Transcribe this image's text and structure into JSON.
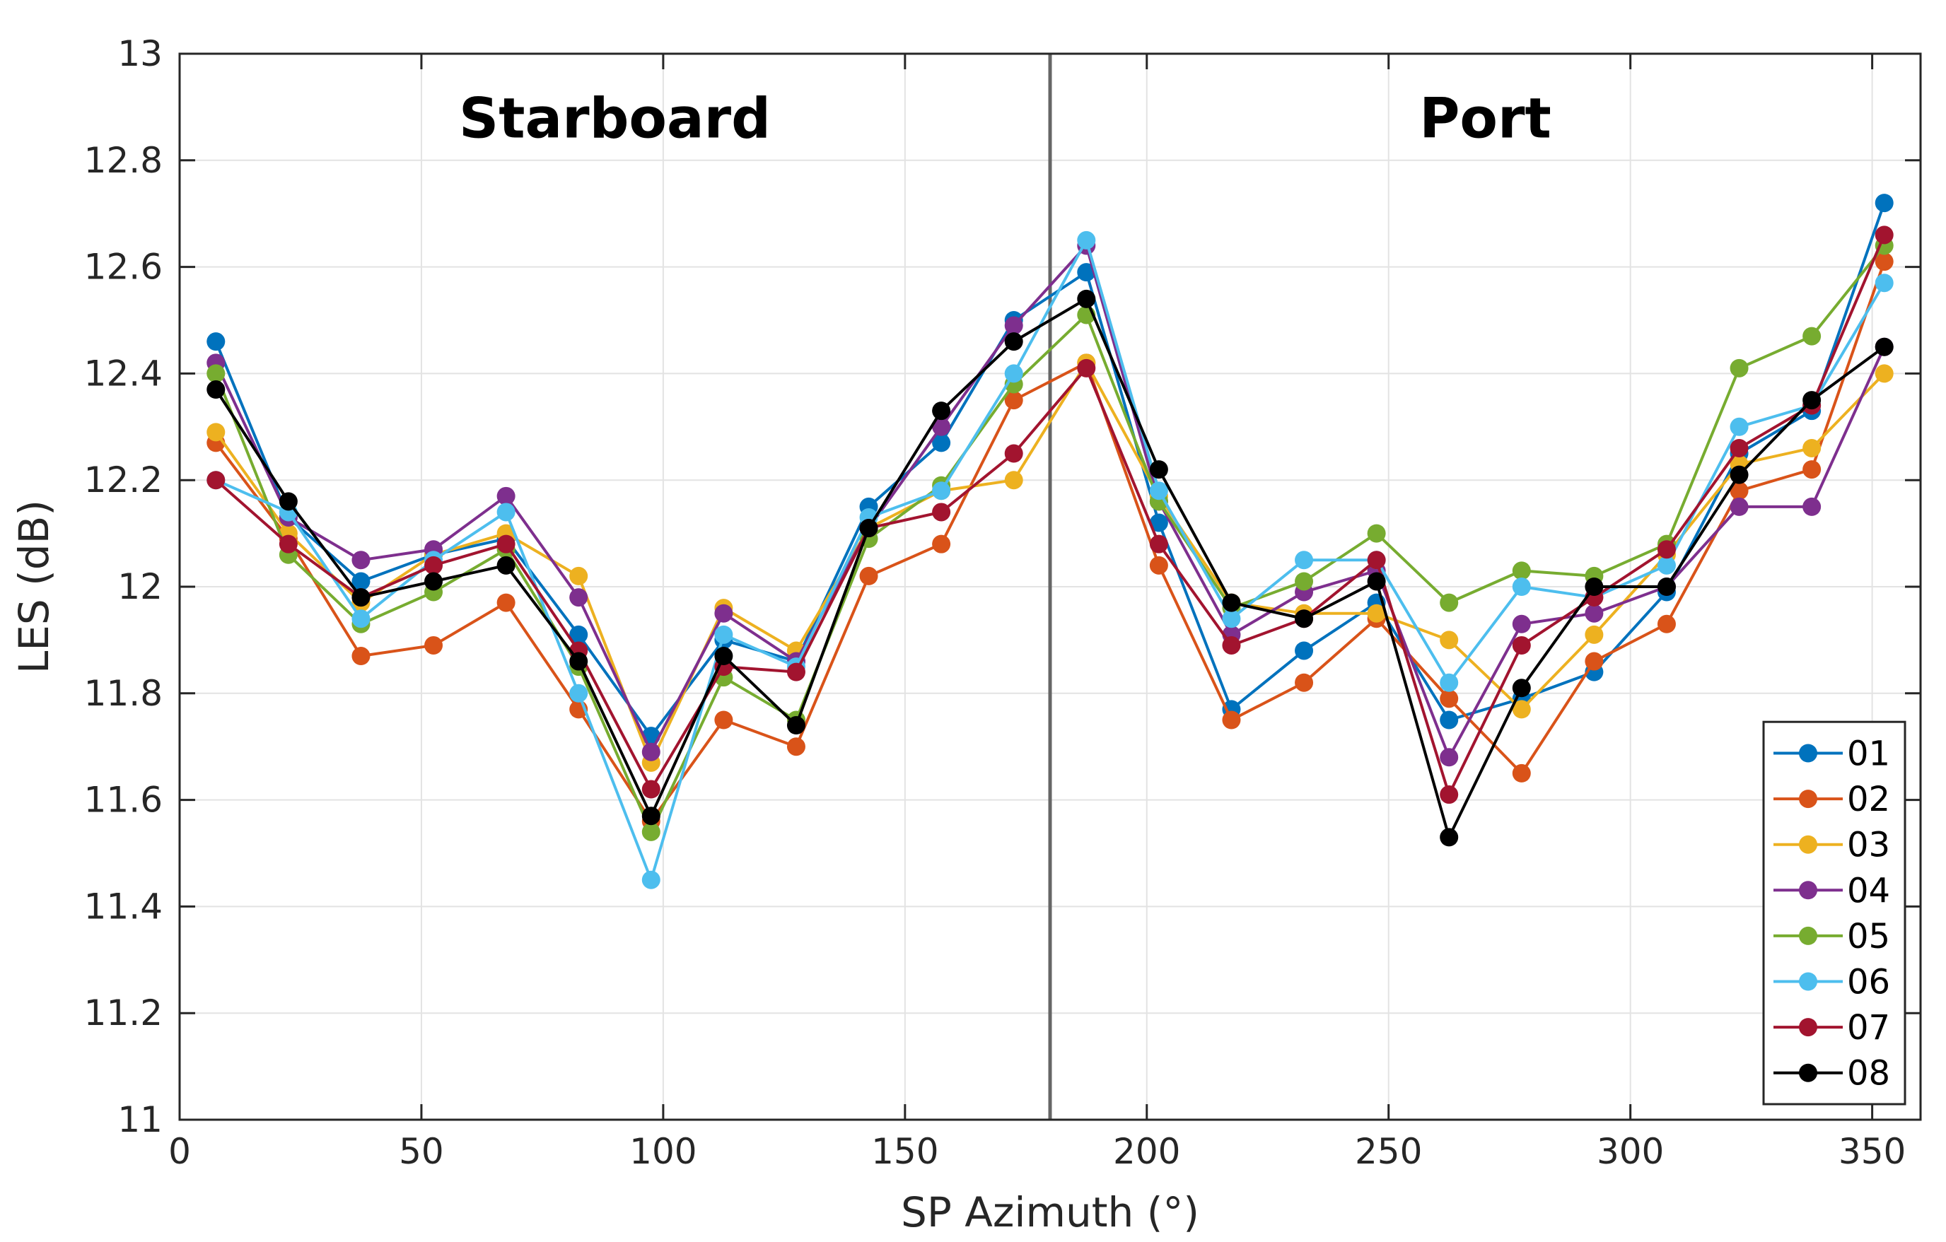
{
  "chart_data": {
    "type": "line",
    "xlabel": "SP Azimuth (°)",
    "ylabel": "LES (dB)",
    "xlim": [
      0,
      360
    ],
    "ylim": [
      11,
      13
    ],
    "x_ticks": [
      0,
      50,
      100,
      150,
      200,
      250,
      300,
      350
    ],
    "y_ticks": [
      11,
      11.2,
      11.4,
      11.6,
      11.8,
      12,
      12.2,
      12.4,
      12.6,
      12.8,
      13
    ],
    "y_tick_labels": [
      "11",
      "11.2",
      "11.4",
      "11.6",
      "11.8",
      "12",
      "12.2",
      "12.4",
      "12.6",
      "12.8",
      "13"
    ],
    "grid": true,
    "divider_x": 180,
    "panel_titles": [
      {
        "text": "Starboard",
        "x": 90,
        "y": 12.88
      },
      {
        "text": "Port",
        "x": 270,
        "y": 12.88
      }
    ],
    "legend_position": "bottom-right",
    "x": [
      7.5,
      22.5,
      37.5,
      52.5,
      67.5,
      82.5,
      97.5,
      112.5,
      127.5,
      142.5,
      157.5,
      172.5,
      187.5,
      202.5,
      217.5,
      232.5,
      247.5,
      262.5,
      277.5,
      292.5,
      307.5,
      322.5,
      337.5,
      352.5
    ],
    "series": [
      {
        "name": "01",
        "color": "#0072BD",
        "values": [
          12.46,
          12.13,
          12.01,
          12.06,
          12.09,
          11.91,
          11.72,
          11.9,
          11.86,
          12.15,
          12.27,
          12.5,
          12.59,
          12.12,
          11.77,
          11.88,
          11.97,
          11.75,
          11.79,
          11.84,
          11.99,
          12.25,
          12.33,
          12.72
        ]
      },
      {
        "name": "02",
        "color": "#D95319",
        "values": [
          12.27,
          12.09,
          11.87,
          11.89,
          11.97,
          11.77,
          11.56,
          11.75,
          11.7,
          12.02,
          12.08,
          12.35,
          12.42,
          12.04,
          11.75,
          11.82,
          11.94,
          11.79,
          11.65,
          11.86,
          11.93,
          12.18,
          12.22,
          12.61
        ]
      },
      {
        "name": "03",
        "color": "#EDB120",
        "values": [
          12.29,
          12.1,
          11.97,
          12.06,
          12.1,
          12.02,
          11.67,
          11.96,
          11.88,
          12.11,
          12.18,
          12.2,
          12.42,
          12.17,
          11.97,
          11.95,
          11.95,
          11.9,
          11.77,
          11.91,
          12.06,
          12.23,
          12.26,
          12.4
        ]
      },
      {
        "name": "04",
        "color": "#7E2F8E",
        "values": [
          12.42,
          12.13,
          12.05,
          12.07,
          12.17,
          11.98,
          11.69,
          11.95,
          11.86,
          12.11,
          12.3,
          12.49,
          12.64,
          12.16,
          11.91,
          11.99,
          12.03,
          11.68,
          11.93,
          11.95,
          12.0,
          12.15,
          12.15,
          12.45
        ]
      },
      {
        "name": "05",
        "color": "#77AC30",
        "values": [
          12.4,
          12.06,
          11.93,
          11.99,
          12.07,
          11.85,
          11.54,
          11.83,
          11.75,
          12.09,
          12.19,
          12.38,
          12.51,
          12.16,
          11.96,
          12.01,
          12.1,
          11.97,
          12.03,
          12.02,
          12.08,
          12.41,
          12.47,
          12.64
        ]
      },
      {
        "name": "06",
        "color": "#4DBEEE",
        "values": [
          12.2,
          12.14,
          11.94,
          12.05,
          12.14,
          11.8,
          11.45,
          11.91,
          11.85,
          12.13,
          12.18,
          12.4,
          12.65,
          12.18,
          11.94,
          12.05,
          12.05,
          11.82,
          12.0,
          11.98,
          12.04,
          12.3,
          12.34,
          12.57
        ]
      },
      {
        "name": "07",
        "color": "#A2142F",
        "values": [
          12.2,
          12.08,
          11.98,
          12.04,
          12.08,
          11.88,
          11.62,
          11.85,
          11.84,
          12.11,
          12.14,
          12.25,
          12.41,
          12.08,
          11.89,
          11.94,
          12.05,
          11.61,
          11.89,
          11.98,
          12.07,
          12.26,
          12.34,
          12.66
        ]
      },
      {
        "name": "08",
        "color": "#000000",
        "values": [
          12.37,
          12.16,
          11.98,
          12.01,
          12.04,
          11.86,
          11.57,
          11.87,
          11.74,
          12.11,
          12.33,
          12.46,
          12.54,
          12.22,
          11.97,
          11.94,
          12.01,
          11.53,
          11.81,
          12.0,
          12.0,
          12.21,
          12.35,
          12.45
        ]
      }
    ]
  }
}
